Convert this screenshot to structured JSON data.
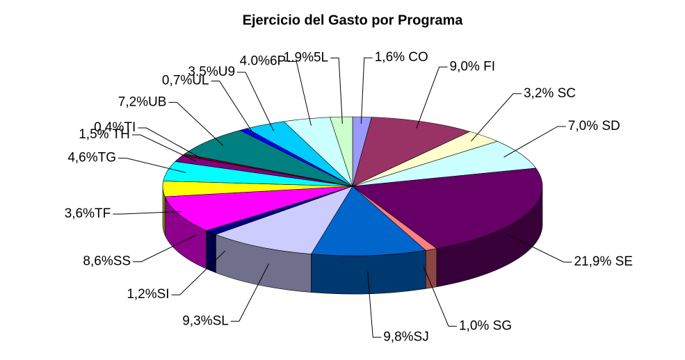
{
  "chart_data": {
    "type": "pie",
    "title": "Ejercicio del Gasto por Programa",
    "values": [
      1.6,
      9.0,
      3.2,
      7.0,
      21.9,
      1.0,
      9.8,
      9.3,
      1.2,
      8.6,
      3.6,
      4.6,
      1.5,
      0.4,
      7.2,
      0.7,
      3.5,
      4.0,
      1.9
    ],
    "value_labels": [
      "1,6% CO",
      "9,0% FI",
      "3,2% SC",
      "7,0% SD",
      "21,9% SE",
      "1,0% SG",
      "9,8%SJ",
      "9,3%SL",
      "1,2%SI",
      "8,6%SS",
      "3,6%TF",
      "4,6%TG",
      "1,5% TH",
      "0,4%TI",
      "7,2%UB",
      "0,7%UL",
      "3.5%U9",
      "4.0%6P",
      "1.9%5L"
    ],
    "colors": [
      "#9999ff",
      "#993366",
      "#ffffcc",
      "#ccffff",
      "#660066",
      "#ff8080",
      "#0066cc",
      "#ccccff",
      "#000080",
      "#ff00ff",
      "#ffff00",
      "#00ffff",
      "#800080",
      "#800000",
      "#008080",
      "#0000ff",
      "#00ccff",
      "#ccffff",
      "#ccffcc"
    ]
  }
}
